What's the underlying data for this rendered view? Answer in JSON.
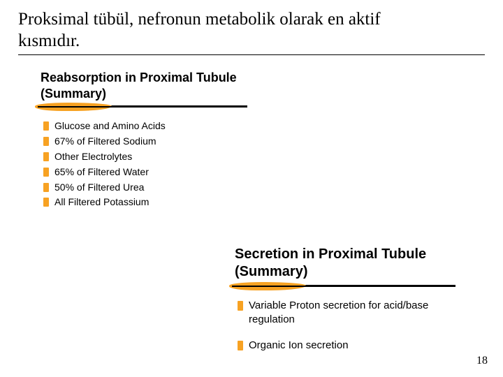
{
  "title": "Proksimal tübül, nefronun metabolik olarak en aktif kısmıdır.",
  "page_number": "18",
  "colors": {
    "accent": "#f7a223",
    "text": "#000000",
    "bg": "#ffffff"
  },
  "card1": {
    "heading": "Reabsorption in Proximal Tubule (Summary)",
    "items": [
      "Glucose and Amino Acids",
      "67% of Filtered Sodium",
      "Other Electrolytes",
      "65% of Filtered Water",
      "50% of Filtered Urea",
      "All Filtered Potassium"
    ]
  },
  "card2": {
    "heading": "Secretion in Proximal Tubule (Summary)",
    "items": [
      "Variable Proton secretion for acid/base regulation",
      "Organic Ion secretion"
    ]
  }
}
